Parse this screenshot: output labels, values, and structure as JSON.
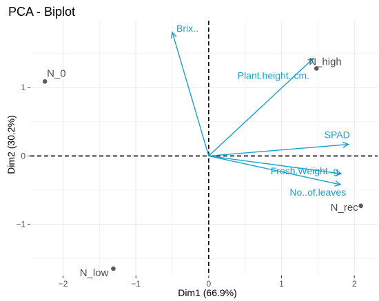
{
  "chart_data": {
    "type": "scatter",
    "title": "PCA - Biplot",
    "xlabel": "Dim1 (66.9%)",
    "ylabel": "Dim2 (30.2%)",
    "xlim": [
      -2.45,
      2.32
    ],
    "ylim": [
      -1.75,
      1.98
    ],
    "xticks": [
      {
        "value": -2,
        "label": "−2"
      },
      {
        "value": -1,
        "label": "−1"
      },
      {
        "value": 0,
        "label": "0"
      },
      {
        "value": 1,
        "label": "1"
      },
      {
        "value": 2,
        "label": "2"
      }
    ],
    "yticks": [
      {
        "value": -1,
        "label": "−1"
      },
      {
        "value": 0,
        "label": "0"
      },
      {
        "value": 1,
        "label": "1"
      }
    ],
    "grid": true,
    "individuals": [
      {
        "label": "N_0",
        "x": -2.25,
        "y": 1.09
      },
      {
        "label": "N_high",
        "x": 1.48,
        "y": 1.28
      },
      {
        "label": "N_rec",
        "x": 2.09,
        "y": -0.73
      },
      {
        "label": "N_low",
        "x": -1.31,
        "y": -1.65
      }
    ],
    "variables": [
      {
        "label": "Brix..",
        "x": -0.5,
        "y": 1.81
      },
      {
        "label": "Plant.height..cm.",
        "x": 1.44,
        "y": 1.43
      },
      {
        "label": "SPAD",
        "x": 1.92,
        "y": 0.17
      },
      {
        "label": "Fresh.Weight..g.",
        "x": 1.82,
        "y": -0.26
      },
      {
        "label": "No..of.leaves",
        "x": 1.81,
        "y": -0.42
      }
    ],
    "colors": {
      "points": "#5b5b5b",
      "point_labels": "#4d4d4d",
      "arrows": "#1b9fcd",
      "grid": "#ebebeb",
      "zero_lines": "#000000"
    }
  }
}
